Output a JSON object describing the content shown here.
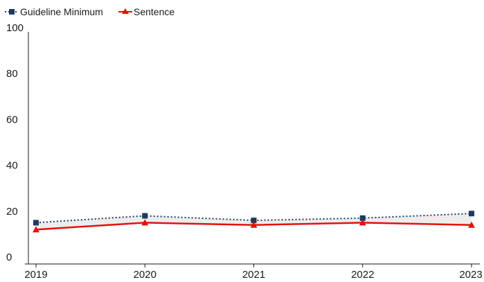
{
  "chart_data": {
    "type": "line",
    "title": "",
    "xlabel": "",
    "ylabel": "",
    "x": [
      "2019",
      "2020",
      "2021",
      "2022",
      "2023"
    ],
    "ylim": [
      0,
      100
    ],
    "yticks": [
      "0",
      "20",
      "40",
      "60",
      "80",
      "100"
    ],
    "grid": false,
    "legend_position": "top-left",
    "shaded_band_between_series": true,
    "series": [
      {
        "name": "Guideline Minimum",
        "values": [
          18,
          21,
          19,
          20,
          22
        ],
        "color": "#1f3a5f",
        "line_style": "dotted",
        "marker": "square"
      },
      {
        "name": "Sentence",
        "values": [
          15,
          18,
          17,
          18,
          17
        ],
        "color": "#e3120b",
        "line_style": "solid",
        "marker": "triangle"
      }
    ],
    "band_color": "#ededed"
  }
}
